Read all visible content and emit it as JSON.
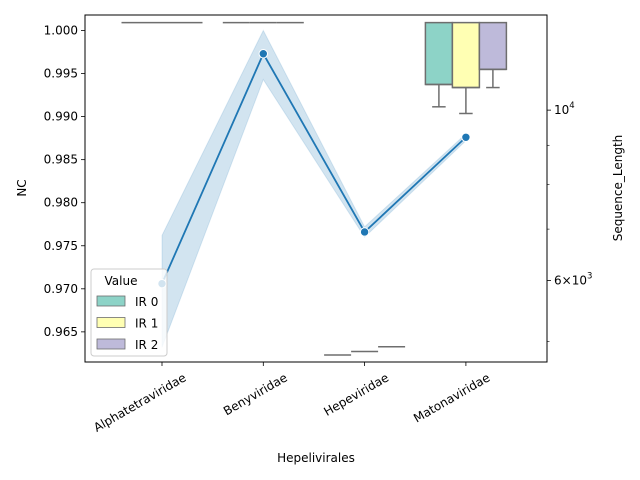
{
  "chart_data": {
    "type": "box",
    "xlabel": "Hepelivirales",
    "categories": [
      "Alphatetraviridae",
      "Benyviridae",
      "Hepeviridae",
      "Matonaviridae"
    ],
    "left_axis": {
      "label": "NC",
      "ylim": [
        0.9615,
        1.0018
      ],
      "ticks": [
        0.965,
        0.97,
        0.975,
        0.98,
        0.985,
        0.99,
        0.995,
        1.0
      ],
      "tick_labels": [
        "0.965",
        "0.970",
        "0.975",
        "0.980",
        "0.985",
        "0.990",
        "0.995",
        "1.000"
      ]
    },
    "right_axis": {
      "label": "Sequence_Length",
      "scale": "log",
      "ylim": [
        4700,
        13300
      ],
      "major_ticks": [
        6000,
        10000
      ],
      "major_tick_labels": [
        {
          "base": "6",
          "mult": "×",
          "power_base": "10",
          "exp": "3"
        },
        {
          "base": "",
          "mult": "",
          "power_base": "10",
          "exp": "4"
        }
      ],
      "minor_ticks": [
        5000,
        7000,
        8000,
        9000
      ]
    },
    "line_series": {
      "axis": "left",
      "color": "#1f77b4",
      "ci_color": "#1f77b4",
      "points": [
        {
          "category": "Alphatetraviridae",
          "mean": 0.9706,
          "ci_low": 0.9632,
          "ci_high": 0.9762
        },
        {
          "category": "Benyviridae",
          "mean": 0.9973,
          "ci_low": 0.9943,
          "ci_high": 1.0
        },
        {
          "category": "Hepeviridae",
          "mean": 0.9766,
          "ci_low": 0.976,
          "ci_high": 0.9772
        },
        {
          "category": "Matonaviridae",
          "mean": 0.9876,
          "ci_low": 0.9872,
          "ci_high": 0.988
        }
      ]
    },
    "box_series": {
      "axis": "right",
      "hue_label": "Value",
      "hue_levels": [
        {
          "name": "IR 0",
          "color": "#8dd3c7"
        },
        {
          "name": "IR 1",
          "color": "#ffffb3"
        },
        {
          "name": "IR 2",
          "color": "#bebada"
        }
      ],
      "boxes": [
        {
          "category": "Alphatetraviridae",
          "hue": "IR 0",
          "whislo": 13000,
          "q1": 13000,
          "med": 13000,
          "q3": 13000,
          "whishi": 13000
        },
        {
          "category": "Alphatetraviridae",
          "hue": "IR 1",
          "whislo": 13000,
          "q1": 13000,
          "med": 13000,
          "q3": 13000,
          "whishi": 13000
        },
        {
          "category": "Alphatetraviridae",
          "hue": "IR 2",
          "whislo": 13000,
          "q1": 13000,
          "med": 13000,
          "q3": 13000,
          "whishi": 13000
        },
        {
          "category": "Benyviridae",
          "hue": "IR 0",
          "whislo": 13000,
          "q1": 13000,
          "med": 13000,
          "q3": 13000,
          "whishi": 13000
        },
        {
          "category": "Benyviridae",
          "hue": "IR 1",
          "whislo": 13000,
          "q1": 13000,
          "med": 13000,
          "q3": 13000,
          "whishi": 13000
        },
        {
          "category": "Benyviridae",
          "hue": "IR 2",
          "whislo": 13000,
          "q1": 13000,
          "med": 13000,
          "q3": 13000,
          "whishi": 13000
        },
        {
          "category": "Hepeviridae",
          "hue": "IR 0",
          "whislo": 4800,
          "q1": 4800,
          "med": 4800,
          "q3": 4800,
          "whishi": 4800
        },
        {
          "category": "Hepeviridae",
          "hue": "IR 1",
          "whislo": 4850,
          "q1": 4850,
          "med": 4850,
          "q3": 4850,
          "whishi": 4850
        },
        {
          "category": "Hepeviridae",
          "hue": "IR 2",
          "whislo": 4920,
          "q1": 4920,
          "med": 4920,
          "q3": 4920,
          "whishi": 4920
        },
        {
          "category": "Matonaviridae",
          "hue": "IR 0",
          "whislo": 10100,
          "q1": 10800,
          "med": 10800,
          "q3": 13000,
          "whishi": 13000
        },
        {
          "category": "Matonaviridae",
          "hue": "IR 1",
          "whislo": 9900,
          "q1": 10700,
          "med": 10700,
          "q3": 13000,
          "whishi": 13000
        },
        {
          "category": "Matonaviridae",
          "hue": "IR 2",
          "whislo": 10700,
          "q1": 11300,
          "med": 11300,
          "q3": 13000,
          "whishi": 13000
        }
      ]
    },
    "legend": {
      "title": "Value",
      "placement": "lower-left"
    }
  }
}
